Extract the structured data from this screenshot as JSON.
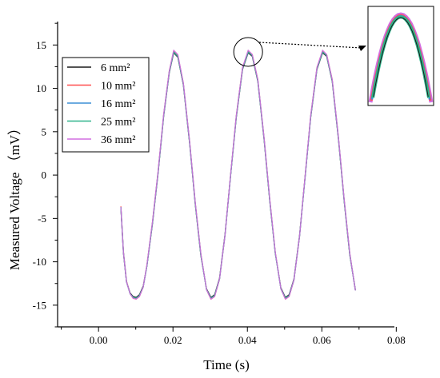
{
  "chart_data": {
    "type": "line",
    "title": "",
    "xlabel": "Time (s)",
    "ylabel": "Measured Voltage （mV）",
    "xlim": [
      -0.011,
      0.0795
    ],
    "ylim": [
      -17.5,
      17.7
    ],
    "x_ticks": [
      0.0,
      0.02,
      0.04,
      0.06,
      0.08
    ],
    "x_tick_labels": [
      "0.00",
      "0.02",
      "0.04",
      "0.06",
      "0.08"
    ],
    "y_ticks": [
      15,
      10,
      5,
      0,
      -5,
      -10,
      -15
    ],
    "y_tick_labels": [
      "15",
      "10",
      "5",
      "0",
      "-5",
      "-10",
      "-15"
    ],
    "grid": false,
    "legend_position": "top-left",
    "x": [
      0.006,
      0.0067,
      0.0075,
      0.0085,
      0.0093,
      0.0101,
      0.011,
      0.012,
      0.013,
      0.0145,
      0.016,
      0.0175,
      0.019,
      0.0202,
      0.0213,
      0.0228,
      0.0245,
      0.026,
      0.0275,
      0.029,
      0.0302,
      0.0312,
      0.0325,
      0.034,
      0.0355,
      0.037,
      0.0387,
      0.0402,
      0.0413,
      0.0428,
      0.0445,
      0.046,
      0.0475,
      0.049,
      0.0502,
      0.0512,
      0.0525,
      0.054,
      0.0555,
      0.057,
      0.0587,
      0.0602,
      0.0613,
      0.0628,
      0.0645,
      0.066,
      0.0675,
      0.069
    ],
    "series": [
      {
        "name": "6 mm²",
        "color": "#1a1a1a",
        "values": [
          -3.8,
          -9.0,
          -12.3,
          -13.6,
          -14.0,
          -14.1,
          -13.8,
          -12.8,
          -10.5,
          -5.6,
          0.2,
          6.8,
          11.8,
          14.1,
          13.6,
          10.4,
          3.6,
          -3.4,
          -9.3,
          -13.1,
          -14.1,
          -13.8,
          -11.9,
          -6.8,
          0.0,
          6.6,
          12.2,
          14.1,
          13.7,
          10.8,
          4.0,
          -3.0,
          -9.0,
          -13.0,
          -14.1,
          -13.8,
          -12.0,
          -7.0,
          -0.2,
          6.6,
          12.2,
          14.1,
          13.7,
          10.8,
          4.0,
          -3.0,
          -9.2,
          -13.2
        ]
      },
      {
        "name": "10 mm²",
        "color": "#ff4d4d",
        "values": [
          -3.6,
          -8.8,
          -12.2,
          -13.7,
          -14.2,
          -14.3,
          -14.0,
          -12.9,
          -10.4,
          -5.4,
          0.4,
          7.0,
          12.0,
          14.3,
          13.8,
          10.6,
          3.8,
          -3.2,
          -9.1,
          -13.2,
          -14.3,
          -14.0,
          -12.0,
          -6.9,
          0.1,
          6.8,
          12.4,
          14.3,
          13.9,
          11.0,
          4.2,
          -2.8,
          -8.9,
          -13.1,
          -14.3,
          -14.0,
          -12.1,
          -7.1,
          -0.1,
          6.8,
          12.4,
          14.3,
          13.9,
          11.0,
          4.2,
          -2.8,
          -9.0,
          -13.3
        ]
      },
      {
        "name": "16 mm²",
        "color": "#3d8fd6",
        "values": [
          -3.7,
          -8.9,
          -12.3,
          -13.7,
          -14.1,
          -14.2,
          -13.9,
          -12.9,
          -10.5,
          -5.5,
          0.3,
          6.9,
          11.9,
          14.2,
          13.7,
          10.5,
          3.7,
          -3.3,
          -9.2,
          -13.2,
          -14.2,
          -13.9,
          -12.0,
          -6.9,
          0.0,
          6.7,
          12.3,
          14.2,
          13.8,
          10.9,
          4.1,
          -2.9,
          -9.0,
          -13.1,
          -14.2,
          -13.9,
          -12.1,
          -7.1,
          -0.2,
          6.7,
          12.3,
          14.2,
          13.8,
          10.9,
          4.1,
          -2.9,
          -9.1,
          -13.3
        ]
      },
      {
        "name": "25 mm²",
        "color": "#2db38a",
        "values": [
          -3.7,
          -8.9,
          -12.3,
          -13.7,
          -14.1,
          -14.2,
          -13.9,
          -12.9,
          -10.5,
          -5.5,
          0.3,
          6.9,
          11.9,
          14.2,
          13.7,
          10.5,
          3.7,
          -3.3,
          -9.2,
          -13.2,
          -14.2,
          -13.9,
          -12.0,
          -6.9,
          0.0,
          6.7,
          12.3,
          14.2,
          13.8,
          10.9,
          4.1,
          -2.9,
          -9.0,
          -13.1,
          -14.2,
          -13.9,
          -12.1,
          -7.1,
          -0.2,
          6.7,
          12.3,
          14.2,
          13.8,
          10.9,
          4.1,
          -2.9,
          -9.1,
          -13.3
        ]
      },
      {
        "name": "36 mm²",
        "color": "#d26fe0",
        "values": [
          -3.7,
          -8.9,
          -12.3,
          -13.7,
          -14.2,
          -14.3,
          -14.0,
          -12.9,
          -10.4,
          -5.4,
          0.4,
          7.0,
          12.0,
          14.4,
          13.9,
          10.6,
          3.8,
          -3.2,
          -9.1,
          -13.2,
          -14.3,
          -14.0,
          -12.0,
          -6.9,
          0.1,
          6.8,
          12.4,
          14.4,
          13.9,
          11.0,
          4.2,
          -2.8,
          -8.9,
          -13.1,
          -14.3,
          -14.0,
          -12.1,
          -7.1,
          -0.1,
          6.8,
          12.4,
          14.4,
          13.9,
          11.0,
          4.2,
          -2.8,
          -9.0,
          -13.3
        ]
      }
    ],
    "annotation": {
      "type": "zoom-inset",
      "target": {
        "x": 0.0402,
        "y": 14.2
      },
      "description": "peaks of the five series magnified: purple outermost, green innermost"
    }
  }
}
